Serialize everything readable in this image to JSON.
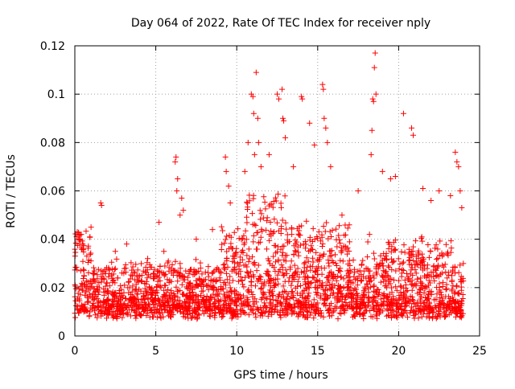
{
  "chart_data": {
    "type": "scatter",
    "title": "Day 064 of 2022, Rate Of TEC Index for receiver nply",
    "xlabel": "GPS time / hours",
    "ylabel": "ROTI / TECUs",
    "xlim": [
      0,
      25
    ],
    "ylim": [
      0,
      0.12
    ],
    "x_ticks": [
      0,
      5,
      10,
      15,
      20,
      25
    ],
    "x_tick_labels": [
      "0",
      "5",
      "10",
      "15",
      "20",
      "25"
    ],
    "y_ticks": [
      0,
      0.02,
      0.04,
      0.06,
      0.08,
      0.1,
      0.12
    ],
    "y_tick_labels": [
      "0",
      "0.02",
      "0.04",
      "0.06",
      "0.08",
      "0.1",
      "0.12"
    ],
    "grid": true,
    "marker": "plus",
    "series_color": "#ff0000",
    "series": [
      {
        "x": [
          0.1,
          0.15,
          0.2,
          0.3,
          0.4,
          0.5,
          1.0,
          1.6,
          1.65,
          2.5,
          3.2,
          4.5,
          5.2,
          5.5,
          6.2,
          6.25,
          6.3,
          6.35,
          6.5,
          6.6,
          6.7,
          7.5,
          8.5,
          9.3,
          9.35,
          9.5,
          9.6,
          10.5,
          10.7,
          10.9,
          11.0,
          11.05,
          11.1,
          11.2,
          11.3,
          11.35,
          11.5,
          12.0,
          12.5,
          12.6,
          12.8,
          12.85,
          12.9,
          13.0,
          13.5,
          14.0,
          14.05,
          14.5,
          14.8,
          15.3,
          15.35,
          15.4,
          15.5,
          15.6,
          15.8,
          16.5,
          17.5,
          18.2,
          18.3,
          18.35,
          18.4,
          18.45,
          18.5,
          18.55,
          18.6,
          19.0,
          19.5,
          19.8,
          20.3,
          20.8,
          20.9,
          21.5,
          22.0,
          22.5,
          23.2,
          23.5,
          23.6,
          23.7,
          23.8,
          23.9
        ],
        "y": [
          0.041,
          0.043,
          0.04,
          0.038,
          0.042,
          0.036,
          0.045,
          0.055,
          0.054,
          0.035,
          0.038,
          0.032,
          0.047,
          0.035,
          0.072,
          0.074,
          0.06,
          0.065,
          0.05,
          0.057,
          0.052,
          0.04,
          0.044,
          0.074,
          0.068,
          0.062,
          0.055,
          0.068,
          0.08,
          0.1,
          0.099,
          0.092,
          0.075,
          0.109,
          0.09,
          0.08,
          0.07,
          0.075,
          0.1,
          0.098,
          0.102,
          0.09,
          0.089,
          0.082,
          0.07,
          0.099,
          0.098,
          0.088,
          0.079,
          0.104,
          0.102,
          0.09,
          0.086,
          0.08,
          0.07,
          0.05,
          0.06,
          0.042,
          0.075,
          0.085,
          0.098,
          0.097,
          0.111,
          0.117,
          0.1,
          0.068,
          0.065,
          0.066,
          0.092,
          0.086,
          0.083,
          0.061,
          0.056,
          0.06,
          0.058,
          0.076,
          0.072,
          0.07,
          0.06,
          0.053
        ]
      }
    ]
  }
}
